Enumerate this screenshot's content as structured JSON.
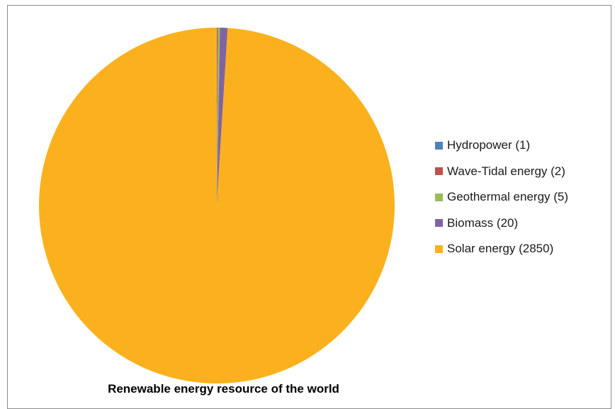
{
  "chart_data": {
    "type": "pie",
    "title": "Renewable energy resource of the world",
    "slices": [
      {
        "label": "Hydropower (1)",
        "value": 1,
        "color": "#4f81bd"
      },
      {
        "label": "Wave-Tidal energy (2)",
        "value": 2,
        "color": "#c0504d"
      },
      {
        "label": "Geothermal energy (5)",
        "value": 5,
        "color": "#9bbb59"
      },
      {
        "label": "Biomass (20)",
        "value": 20,
        "color": "#8064a2"
      },
      {
        "label": "Solar energy (2850)",
        "value": 2850,
        "color": "#fbb11e"
      }
    ],
    "legend_position": "right"
  }
}
